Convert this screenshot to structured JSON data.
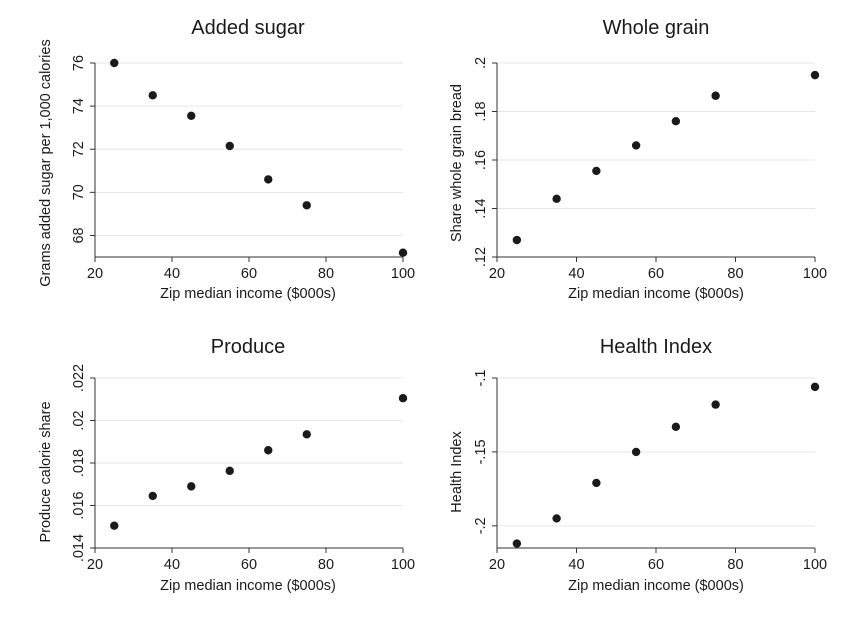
{
  "chart_data": [
    {
      "type": "scatter",
      "title": "Added sugar",
      "xlabel": "Zip median income ($000s)",
      "ylabel": "Grams added sugar per 1,000 calories",
      "x": [
        25,
        35,
        45,
        55,
        65,
        75,
        100
      ],
      "y": [
        76.0,
        74.5,
        73.55,
        72.15,
        70.6,
        69.4,
        67.2
      ],
      "xlim": [
        20,
        100
      ],
      "ylim": [
        67,
        76
      ],
      "xticks": [
        20,
        40,
        60,
        80,
        100
      ],
      "yticks": [
        68,
        70,
        72,
        74,
        76
      ],
      "yticklabels": [
        "68",
        "70",
        "72",
        "74",
        "76"
      ],
      "grid": true
    },
    {
      "type": "scatter",
      "title": "Whole grain",
      "xlabel": "Zip median income ($000s)",
      "ylabel": "Share whole grain bread",
      "x": [
        25,
        35,
        45,
        55,
        65,
        75,
        100
      ],
      "y": [
        0.127,
        0.144,
        0.1555,
        0.166,
        0.176,
        0.1865,
        0.195
      ],
      "xlim": [
        20,
        100
      ],
      "ylim": [
        0.12,
        0.2
      ],
      "xticks": [
        20,
        40,
        60,
        80,
        100
      ],
      "yticks": [
        0.12,
        0.14,
        0.16,
        0.18,
        0.2
      ],
      "yticklabels": [
        ".12",
        ".14",
        ".16",
        ".18",
        ".2"
      ],
      "grid": true
    },
    {
      "type": "scatter",
      "title": "Produce",
      "xlabel": "Zip median income ($000s)",
      "ylabel": "Produce calorie share",
      "x": [
        25,
        35,
        45,
        55,
        65,
        75,
        100
      ],
      "y": [
        0.01505,
        0.01645,
        0.0169,
        0.01763,
        0.0186,
        0.01935,
        0.02105
      ],
      "xlim": [
        20,
        100
      ],
      "ylim": [
        0.014,
        0.022
      ],
      "xticks": [
        20,
        40,
        60,
        80,
        100
      ],
      "yticks": [
        0.014,
        0.016,
        0.018,
        0.02,
        0.022
      ],
      "yticklabels": [
        ".014",
        ".016",
        ".018",
        ".02",
        ".022"
      ],
      "grid": true
    },
    {
      "type": "scatter",
      "title": "Health Index",
      "xlabel": "Zip median income ($000s)",
      "ylabel": "Health Index",
      "x": [
        25,
        35,
        45,
        55,
        65,
        75,
        100
      ],
      "y": [
        -0.212,
        -0.195,
        -0.171,
        -0.15,
        -0.133,
        -0.118,
        -0.106
      ],
      "xlim": [
        20,
        100
      ],
      "ylim": [
        -0.215,
        -0.1
      ],
      "xticks": [
        20,
        40,
        60,
        80,
        100
      ],
      "yticks": [
        -0.2,
        -0.15,
        -0.1
      ],
      "yticklabels": [
        "-.2",
        "-.15",
        "-.1"
      ],
      "grid": true
    }
  ]
}
